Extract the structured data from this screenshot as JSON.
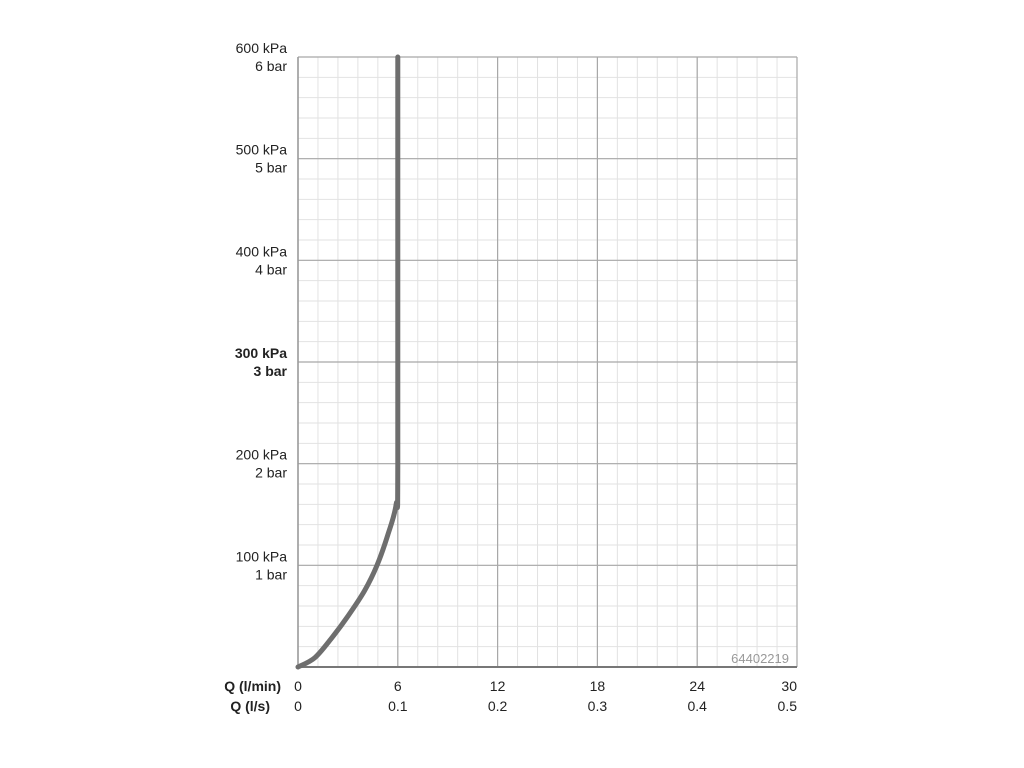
{
  "chart_data": {
    "type": "line",
    "title": "",
    "x_axes": [
      {
        "label": "Q (l/min)",
        "ticks": [
          "0",
          "6",
          "12",
          "18",
          "24",
          "30"
        ],
        "range": [
          0,
          30
        ]
      },
      {
        "label": "Q (l/s)",
        "ticks": [
          "0",
          "0.1",
          "0.2",
          "0.3",
          "0.4",
          "0.5"
        ],
        "range": [
          0,
          0.5
        ]
      }
    ],
    "y_axis": {
      "range": [
        0,
        600
      ],
      "unit": "kPa",
      "ticks": [
        {
          "value": 100,
          "kpa": "100 kPa",
          "bar": "1 bar",
          "bold": false
        },
        {
          "value": 200,
          "kpa": "200 kPa",
          "bar": "2 bar",
          "bold": false
        },
        {
          "value": 300,
          "kpa": "300 kPa",
          "bar": "3 bar",
          "bold": true
        },
        {
          "value": 400,
          "kpa": "400 kPa",
          "bar": "4 bar",
          "bold": false
        },
        {
          "value": 500,
          "kpa": "500 kPa",
          "bar": "5 bar",
          "bold": false
        },
        {
          "value": 600,
          "kpa": "600 kPa",
          "bar": "6 bar",
          "bold": false
        }
      ]
    },
    "grid": true,
    "series": [
      {
        "color": "#6e6e6e",
        "points": [
          [
            0,
            0
          ],
          [
            1,
            9
          ],
          [
            2,
            28
          ],
          [
            3,
            50
          ],
          [
            4,
            75
          ],
          [
            4.75,
            100
          ],
          [
            5.4,
            130
          ],
          [
            5.9,
            160
          ],
          [
            6,
            200
          ],
          [
            6,
            600
          ]
        ]
      }
    ],
    "annotation": "64402219"
  }
}
